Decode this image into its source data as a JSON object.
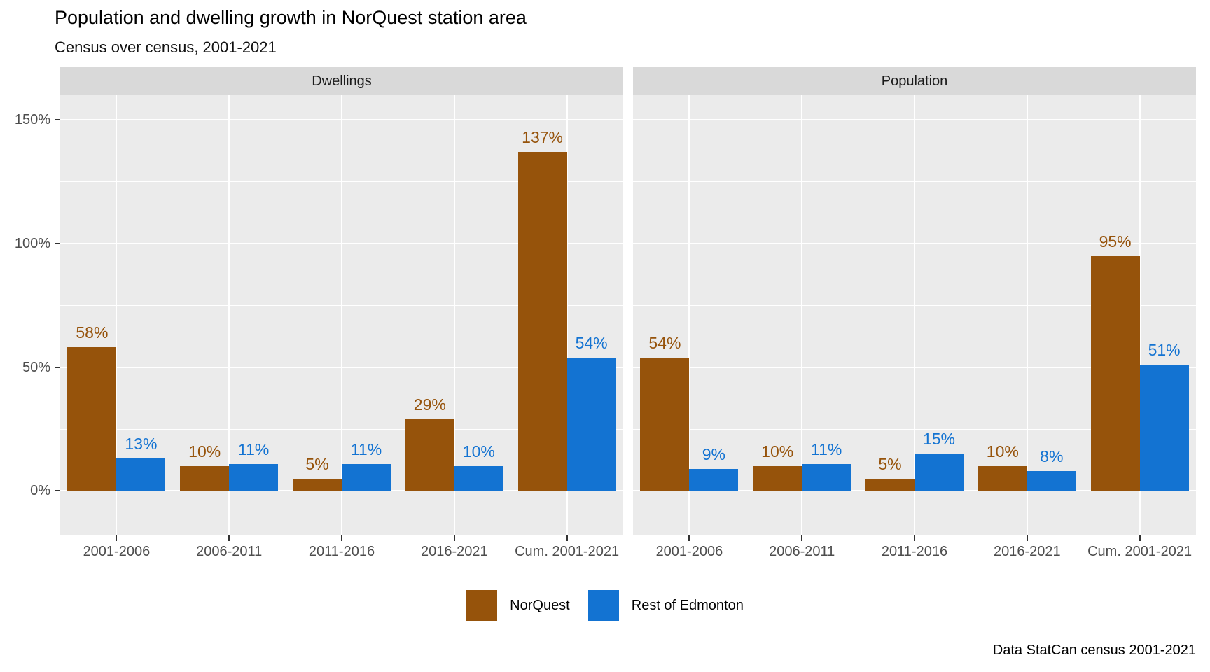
{
  "title": "Population and dwelling growth in NorQuest station area",
  "subtitle": "Census over census, 2001-2021",
  "caption": "Data StatCan census 2001-2021",
  "colors": {
    "norquest": "#96530B",
    "rest_of_edmonton": "#1373D2",
    "panel_background": "#EBEBEB",
    "strip_background": "#D9D9D9",
    "gridline": "#FFFFFF",
    "axis_text": "#4D4D4D"
  },
  "legend": {
    "items": [
      {
        "label": "NorQuest",
        "color": "#96530B"
      },
      {
        "label": "Rest of Edmonton",
        "color": "#1373D2"
      }
    ]
  },
  "chart_data": {
    "type": "bar",
    "categories": [
      "2001-2006",
      "2006-2011",
      "2011-2016",
      "2016-2021",
      "Cum. 2001-2021"
    ],
    "facets": [
      {
        "label": "Dwellings",
        "series": [
          {
            "name": "NorQuest",
            "color": "#96530B",
            "values": [
              58,
              10,
              5,
              29,
              137
            ]
          },
          {
            "name": "Rest of Edmonton",
            "color": "#1373D2",
            "values": [
              13,
              11,
              11,
              10,
              54
            ]
          }
        ]
      },
      {
        "label": "Population",
        "series": [
          {
            "name": "NorQuest",
            "color": "#96530B",
            "values": [
              54,
              10,
              5,
              10,
              95
            ]
          },
          {
            "name": "Rest of Edmonton",
            "color": "#1373D2",
            "values": [
              9,
              11,
              15,
              8,
              51
            ]
          }
        ]
      }
    ],
    "value_suffix": "%",
    "y_ticks": [
      0,
      50,
      100,
      150
    ],
    "y_tick_labels": [
      "0%",
      "50%",
      "100%",
      "150%"
    ],
    "y_minor_ticks": [
      25,
      75,
      125
    ],
    "ylim": [
      -18,
      160
    ],
    "grid": true,
    "legend_position": "bottom"
  }
}
